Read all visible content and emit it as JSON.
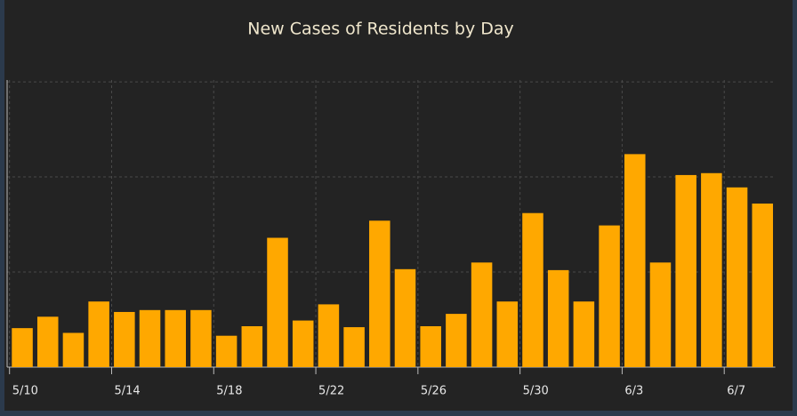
{
  "chart_data": {
    "type": "bar",
    "title": "New Cases of Residents by Day",
    "categories": [
      "5/10",
      null,
      null,
      null,
      "5/14",
      null,
      null,
      null,
      "5/18",
      null,
      null,
      null,
      "5/22",
      null,
      null,
      null,
      "5/26",
      null,
      null,
      null,
      "5/30",
      null,
      null,
      null,
      "6/3",
      null,
      null,
      null,
      "6/7",
      null
    ],
    "values": [
      4.1,
      5.3,
      3.6,
      6.9,
      5.8,
      6.0,
      6.0,
      6.0,
      3.3,
      4.3,
      13.6,
      4.9,
      6.6,
      4.2,
      15.4,
      10.3,
      4.3,
      5.6,
      11.0,
      6.9,
      16.2,
      10.2,
      6.9,
      14.9,
      22.4,
      11.0,
      20.2,
      20.4,
      18.9,
      17.2
    ],
    "color": "#ffa800",
    "ylim": [
      0,
      33
    ],
    "yticks": [
      0,
      10,
      20,
      30
    ],
    "grid": true
  }
}
